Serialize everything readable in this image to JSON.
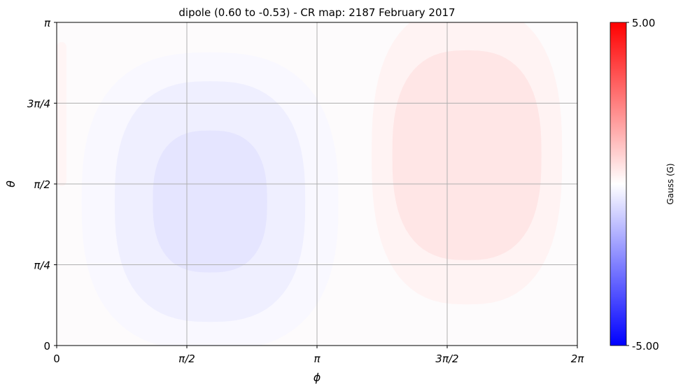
{
  "chart_data": {
    "type": "heatmap",
    "title": "dipole (0.60 to -0.53) - CR map: 2187 February 2017",
    "xlabel": "ϕ",
    "ylabel": "θ",
    "xlim": [
      0,
      6.283
    ],
    "ylim": [
      0,
      3.1416
    ],
    "x_ticks": [
      {
        "value": 0,
        "label": "0"
      },
      {
        "value": 1.5708,
        "label": "π/2"
      },
      {
        "value": 3.1416,
        "label": "π"
      },
      {
        "value": 4.7124,
        "label": "3π/2"
      },
      {
        "value": 6.2832,
        "label": "2π"
      }
    ],
    "y_ticks": [
      {
        "value": 0,
        "label": "0"
      },
      {
        "value": 0.7854,
        "label": "π/4"
      },
      {
        "value": 1.5708,
        "label": "π/2"
      },
      {
        "value": 2.3562,
        "label": "3π/4"
      },
      {
        "value": 3.1416,
        "label": "π"
      }
    ],
    "grid": true,
    "colorbar": {
      "label": "Gauss (G)",
      "min": -5.0,
      "max": 5.0,
      "min_label": "-5.00",
      "max_label": "5.00",
      "colormap": "bwr",
      "colors": {
        "low": "#0000ff",
        "mid": "#ffffff",
        "high": "#ff0000"
      }
    },
    "field": {
      "description_values": "smooth dipole-like surface field",
      "min": -0.53,
      "max": 0.6,
      "negative_center": {
        "phi": 1.85,
        "theta": 1.4
      },
      "positive_center": {
        "phi": 4.95,
        "theta": 1.85
      }
    }
  }
}
